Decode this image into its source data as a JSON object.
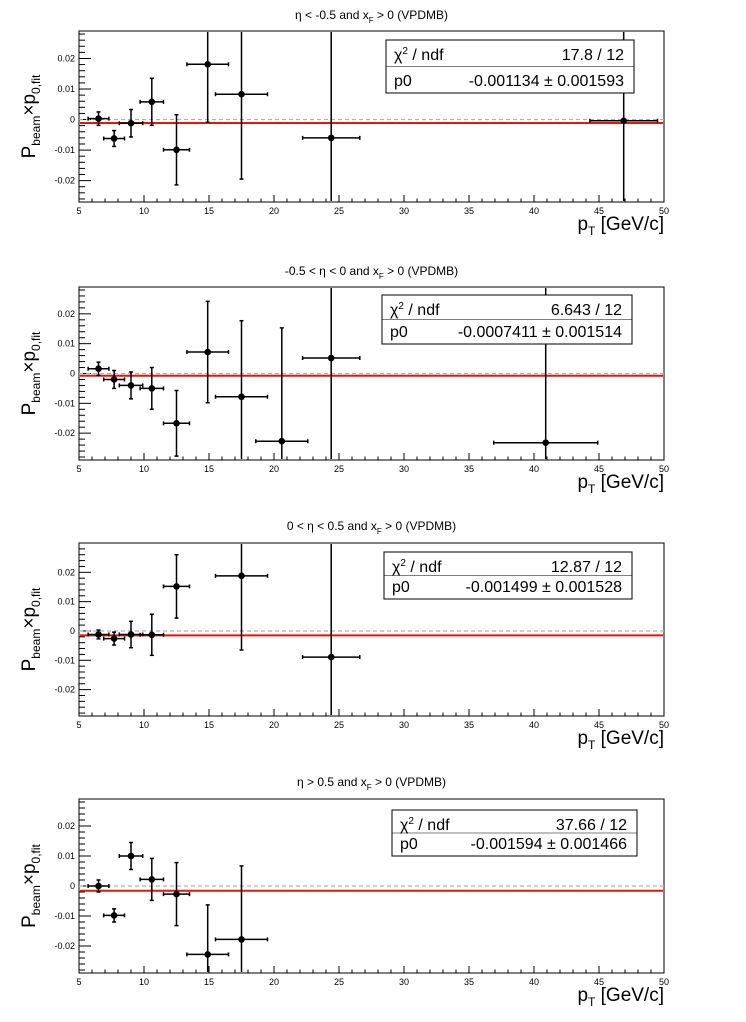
{
  "chart_data": [
    {
      "type": "scatter",
      "title": {
        "a": "η < -0.5 and x",
        "sub": "F",
        "b": " > 0 (VPDMB)"
      },
      "xlabel": {
        "main": "p",
        "sub": "T",
        "tail": " [GeV/c]"
      },
      "ylabel": {
        "main": "P",
        "sub1": "beam",
        "mid": "×p",
        "sub2": "0,fit"
      },
      "xlim": [
        5,
        50
      ],
      "ylim": [
        -0.027,
        0.029
      ],
      "xticks": [
        5,
        10,
        15,
        20,
        25,
        30,
        35,
        40,
        45,
        50
      ],
      "yticks": [
        -0.02,
        -0.01,
        0,
        0.01,
        0.02
      ],
      "ytick_labels": [
        "-0.02",
        "-0.01",
        "0",
        "0.01",
        "0.02"
      ],
      "points": [
        {
          "x": 6.5,
          "y": 0.0003,
          "xerr": 0.8,
          "yerr": 0.0022
        },
        {
          "x": 7.7,
          "y": -0.0062,
          "xerr": 0.8,
          "yerr": 0.0026
        },
        {
          "x": 9.0,
          "y": -0.0012,
          "xerr": 0.9,
          "yerr": 0.0045
        },
        {
          "x": 10.6,
          "y": 0.0058,
          "xerr": 0.9,
          "yerr": 0.0077
        },
        {
          "x": 12.5,
          "y": -0.0099,
          "xerr": 1.0,
          "yerr": 0.0115
        },
        {
          "x": 14.9,
          "y": 0.0181,
          "xerr": 1.6,
          "yerr": 0.019
        },
        {
          "x": 17.5,
          "y": 0.0083,
          "xerr": 2.0,
          "yerr": 0.0278
        },
        {
          "x": 24.4,
          "y": -0.006,
          "xerr": 2.2,
          "yerr": 0.04
        },
        {
          "x": 46.9,
          "y": -0.0004,
          "xerr": 2.6,
          "yerr": 0.04
        }
      ],
      "fit": {
        "p0": -0.001134
      },
      "stats": {
        "chi_label": "χ",
        "chi_sup": "2",
        "chi_tail": " / ndf",
        "chi_value": "17.8 / 12",
        "p0_label": "p0",
        "p0_value": "-0.001134 ± 0.001593"
      },
      "colors": {
        "fit": "#e8140a",
        "zero_line": "#b0b0b0",
        "points": "#000000"
      }
    },
    {
      "type": "scatter",
      "title": {
        "a": "-0.5 < η < 0 and x",
        "sub": "F",
        "b": " > 0 (VPDMB)"
      },
      "xlabel": {
        "main": "p",
        "sub": "T",
        "tail": " [GeV/c]"
      },
      "ylabel": {
        "main": "P",
        "sub1": "beam",
        "mid": "×p",
        "sub2": "0,fit"
      },
      "xlim": [
        5,
        50
      ],
      "ylim": [
        -0.029,
        0.029
      ],
      "xticks": [
        5,
        10,
        15,
        20,
        25,
        30,
        35,
        40,
        45,
        50
      ],
      "yticks": [
        -0.02,
        -0.01,
        0,
        0.01,
        0.02
      ],
      "ytick_labels": [
        "-0.02",
        "-0.01",
        "0",
        "0.01",
        "0.02"
      ],
      "points": [
        {
          "x": 6.5,
          "y": 0.0016,
          "xerr": 0.8,
          "yerr": 0.0022
        },
        {
          "x": 7.7,
          "y": -0.002,
          "xerr": 0.8,
          "yerr": 0.003
        },
        {
          "x": 9.0,
          "y": -0.004,
          "xerr": 0.9,
          "yerr": 0.0045
        },
        {
          "x": 10.6,
          "y": -0.005,
          "xerr": 0.9,
          "yerr": 0.007
        },
        {
          "x": 12.5,
          "y": -0.0167,
          "xerr": 1.0,
          "yerr": 0.011
        },
        {
          "x": 14.9,
          "y": 0.0072,
          "xerr": 1.6,
          "yerr": 0.017
        },
        {
          "x": 17.5,
          "y": -0.0078,
          "xerr": 2.0,
          "yerr": 0.0255
        },
        {
          "x": 20.6,
          "y": -0.0227,
          "xerr": 2.0,
          "yerr": 0.038
        },
        {
          "x": 24.4,
          "y": 0.0052,
          "xerr": 2.2,
          "yerr": 0.04
        },
        {
          "x": 40.9,
          "y": -0.0232,
          "xerr": 4.0,
          "yerr": 0.0525
        }
      ],
      "fit": {
        "p0": -0.0007411
      },
      "stats": {
        "chi_label": "χ",
        "chi_sup": "2",
        "chi_tail": " / ndf",
        "chi_value": "6.643 / 12",
        "p0_label": "p0",
        "p0_value": "-0.0007411 ± 0.001514"
      },
      "colors": {
        "fit": "#e8140a",
        "zero_line": "#b0b0b0",
        "points": "#000000"
      }
    },
    {
      "type": "scatter",
      "title": {
        "a": "0 < η < 0.5 and x",
        "sub": "F",
        "b": " > 0 (VPDMB)"
      },
      "xlabel": {
        "main": "p",
        "sub": "T",
        "tail": " [GeV/c]"
      },
      "ylabel": {
        "main": "P",
        "sub1": "beam",
        "mid": "×p",
        "sub2": "0,fit"
      },
      "xlim": [
        5,
        50
      ],
      "ylim": [
        -0.029,
        0.03
      ],
      "xticks": [
        5,
        10,
        15,
        20,
        25,
        30,
        35,
        40,
        45,
        50
      ],
      "yticks": [
        -0.02,
        -0.01,
        0,
        0.01,
        0.02
      ],
      "ytick_labels": [
        "-0.02",
        "-0.01",
        "0",
        "0.01",
        "0.02"
      ],
      "points": [
        {
          "x": 6.5,
          "y": -0.0012,
          "xerr": 0.8,
          "yerr": 0.0015
        },
        {
          "x": 7.7,
          "y": -0.0026,
          "xerr": 0.8,
          "yerr": 0.0022
        },
        {
          "x": 9.0,
          "y": -0.0012,
          "xerr": 0.9,
          "yerr": 0.0045
        },
        {
          "x": 10.6,
          "y": -0.0013,
          "xerr": 0.9,
          "yerr": 0.007
        },
        {
          "x": 12.5,
          "y": 0.0152,
          "xerr": 1.0,
          "yerr": 0.0108
        },
        {
          "x": 17.5,
          "y": 0.0188,
          "xerr": 2.0,
          "yerr": 0.0253
        },
        {
          "x": 24.4,
          "y": -0.0089,
          "xerr": 2.2,
          "yerr": 0.04
        }
      ],
      "fit": {
        "p0": -0.001499
      },
      "stats": {
        "chi_label": "χ",
        "chi_sup": "2",
        "chi_tail": " / ndf",
        "chi_value": "12.87 / 12",
        "p0_label": "p0",
        "p0_value": "-0.001499 ± 0.001528"
      },
      "colors": {
        "fit": "#e8140a",
        "zero_line": "#b0b0b0",
        "points": "#000000"
      }
    },
    {
      "type": "scatter",
      "title": {
        "a": "η > 0.5 and x",
        "sub": "F",
        "b": " > 0 (VPDMB)"
      },
      "xlabel": {
        "main": "p",
        "sub": "T",
        "tail": " [GeV/c]"
      },
      "ylabel": {
        "main": "P",
        "sub1": "beam",
        "mid": "×p",
        "sub2": "0,fit"
      },
      "xlim": [
        5,
        50
      ],
      "ylim": [
        -0.029,
        0.029
      ],
      "xticks": [
        5,
        10,
        15,
        20,
        25,
        30,
        35,
        40,
        45,
        50
      ],
      "yticks": [
        -0.02,
        -0.01,
        0,
        0.01,
        0.02
      ],
      "ytick_labels": [
        "-0.02",
        "-0.01",
        "0",
        "0.01",
        "0.02"
      ],
      "points": [
        {
          "x": 6.5,
          "y": 0.0,
          "xerr": 0.8,
          "yerr": 0.002
        },
        {
          "x": 7.7,
          "y": -0.0098,
          "xerr": 0.8,
          "yerr": 0.0022
        },
        {
          "x": 9.0,
          "y": 0.01,
          "xerr": 0.9,
          "yerr": 0.0045
        },
        {
          "x": 10.6,
          "y": 0.0022,
          "xerr": 0.9,
          "yerr": 0.007
        },
        {
          "x": 12.5,
          "y": -0.0027,
          "xerr": 1.0,
          "yerr": 0.0105
        },
        {
          "x": 14.9,
          "y": -0.0228,
          "xerr": 1.6,
          "yerr": 0.0165
        },
        {
          "x": 17.5,
          "y": -0.0178,
          "xerr": 2.0,
          "yerr": 0.0245
        }
      ],
      "fit": {
        "p0": -0.001594
      },
      "stats": {
        "chi_label": "χ",
        "chi_sup": "2",
        "chi_tail": " / ndf",
        "chi_value": "37.66 / 12",
        "p0_label": "p0",
        "p0_value": "-0.001594 ± 0.001466"
      },
      "colors": {
        "fit": "#e8140a",
        "zero_line": "#b0b0b0",
        "points": "#000000"
      }
    }
  ]
}
